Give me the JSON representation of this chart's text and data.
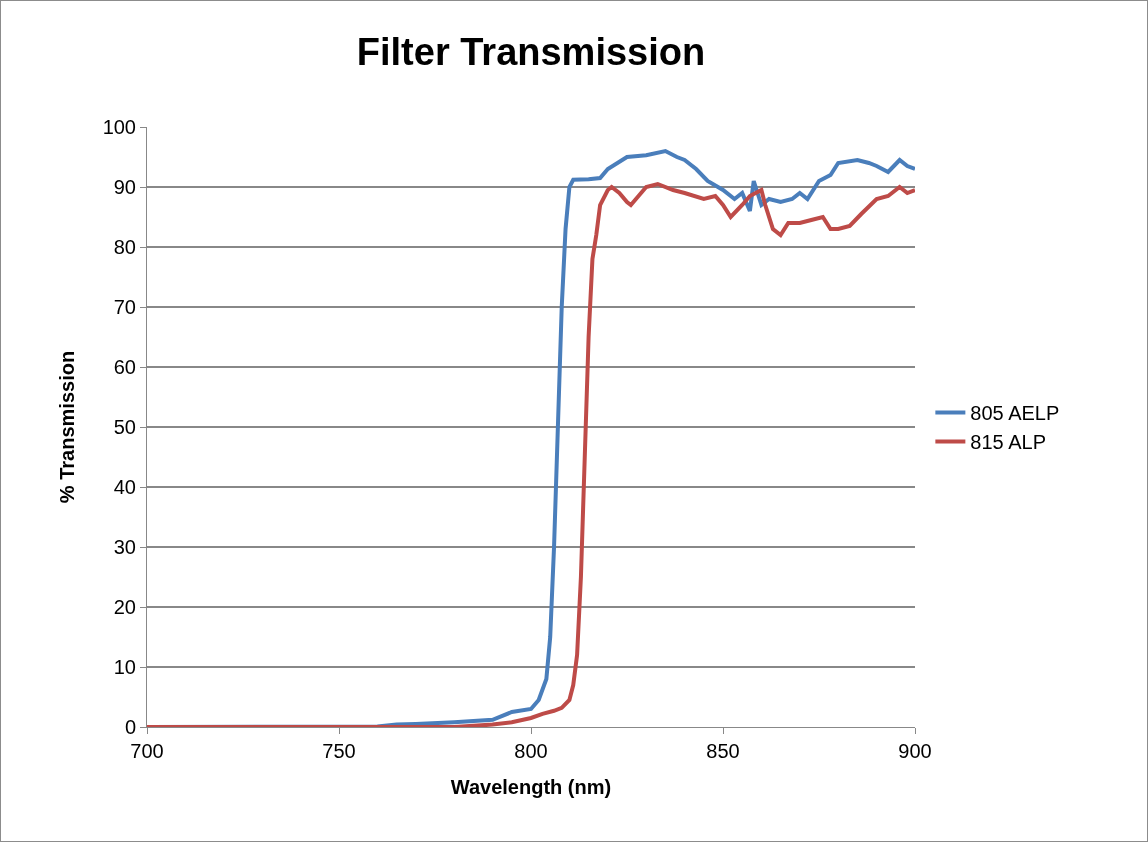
{
  "chart_data": {
    "type": "line",
    "title": "Filter Transmission",
    "xlabel": "Wavelength (nm)",
    "ylabel": "% Transmission",
    "xlim": [
      700,
      900
    ],
    "xticks": [
      700,
      750,
      800,
      850,
      900
    ],
    "ylim": [
      0,
      100
    ],
    "yticks": [
      0,
      10,
      20,
      30,
      40,
      50,
      60,
      70,
      80,
      90,
      100
    ],
    "grid": "y",
    "legend": "right",
    "marker": "none",
    "line_style": "solid",
    "series": [
      {
        "name": "805 AELP",
        "color": "#4a7ebb",
        "x": [
          700,
          760,
          765,
          770,
          780,
          790,
          795,
          800,
          802,
          804,
          805,
          806,
          807,
          808,
          809,
          810,
          811,
          815,
          818,
          820,
          825,
          830,
          835,
          838,
          840,
          843,
          846,
          850,
          853,
          855,
          857,
          858,
          860,
          862,
          865,
          868,
          870,
          872,
          875,
          878,
          880,
          885,
          888,
          890,
          893,
          896,
          898,
          900
        ],
        "values": [
          0,
          0.1,
          0.4,
          0.5,
          0.8,
          1.2,
          2.5,
          3,
          4.5,
          8,
          15,
          30,
          50,
          70,
          83,
          90,
          91.2,
          91.3,
          91.5,
          93,
          95,
          95.3,
          96,
          95,
          94.5,
          93,
          91,
          89.5,
          88,
          89,
          86,
          91,
          87,
          88,
          87.5,
          88,
          89,
          88,
          91,
          92,
          94,
          94.5,
          94,
          93.5,
          92.5,
          94.5,
          93.5,
          93
        ]
      },
      {
        "name": "815 ALP",
        "color": "#be4b48",
        "x": [
          700,
          780,
          790,
          795,
          800,
          803,
          806,
          808,
          810,
          811,
          812,
          813,
          814,
          815,
          816,
          817,
          818,
          820,
          821,
          823,
          825,
          826,
          828,
          830,
          833,
          837,
          840,
          845,
          848,
          850,
          852,
          855,
          857,
          860,
          861,
          863,
          865,
          867,
          870,
          873,
          876,
          878,
          880,
          883,
          886,
          890,
          893,
          896,
          898,
          900
        ],
        "values": [
          0,
          0,
          0.4,
          0.8,
          1.5,
          2.2,
          2.7,
          3.2,
          4.5,
          7,
          12,
          25,
          45,
          65,
          78,
          82,
          87,
          89.5,
          90,
          89,
          87.5,
          87,
          88.5,
          90,
          90.5,
          89.5,
          89,
          88,
          88.5,
          87,
          85,
          87,
          88.5,
          89.5,
          87,
          83,
          82,
          84,
          84,
          84.5,
          85,
          83,
          83,
          83.5,
          85.5,
          88,
          88.5,
          90,
          89,
          89.5
        ]
      }
    ]
  }
}
